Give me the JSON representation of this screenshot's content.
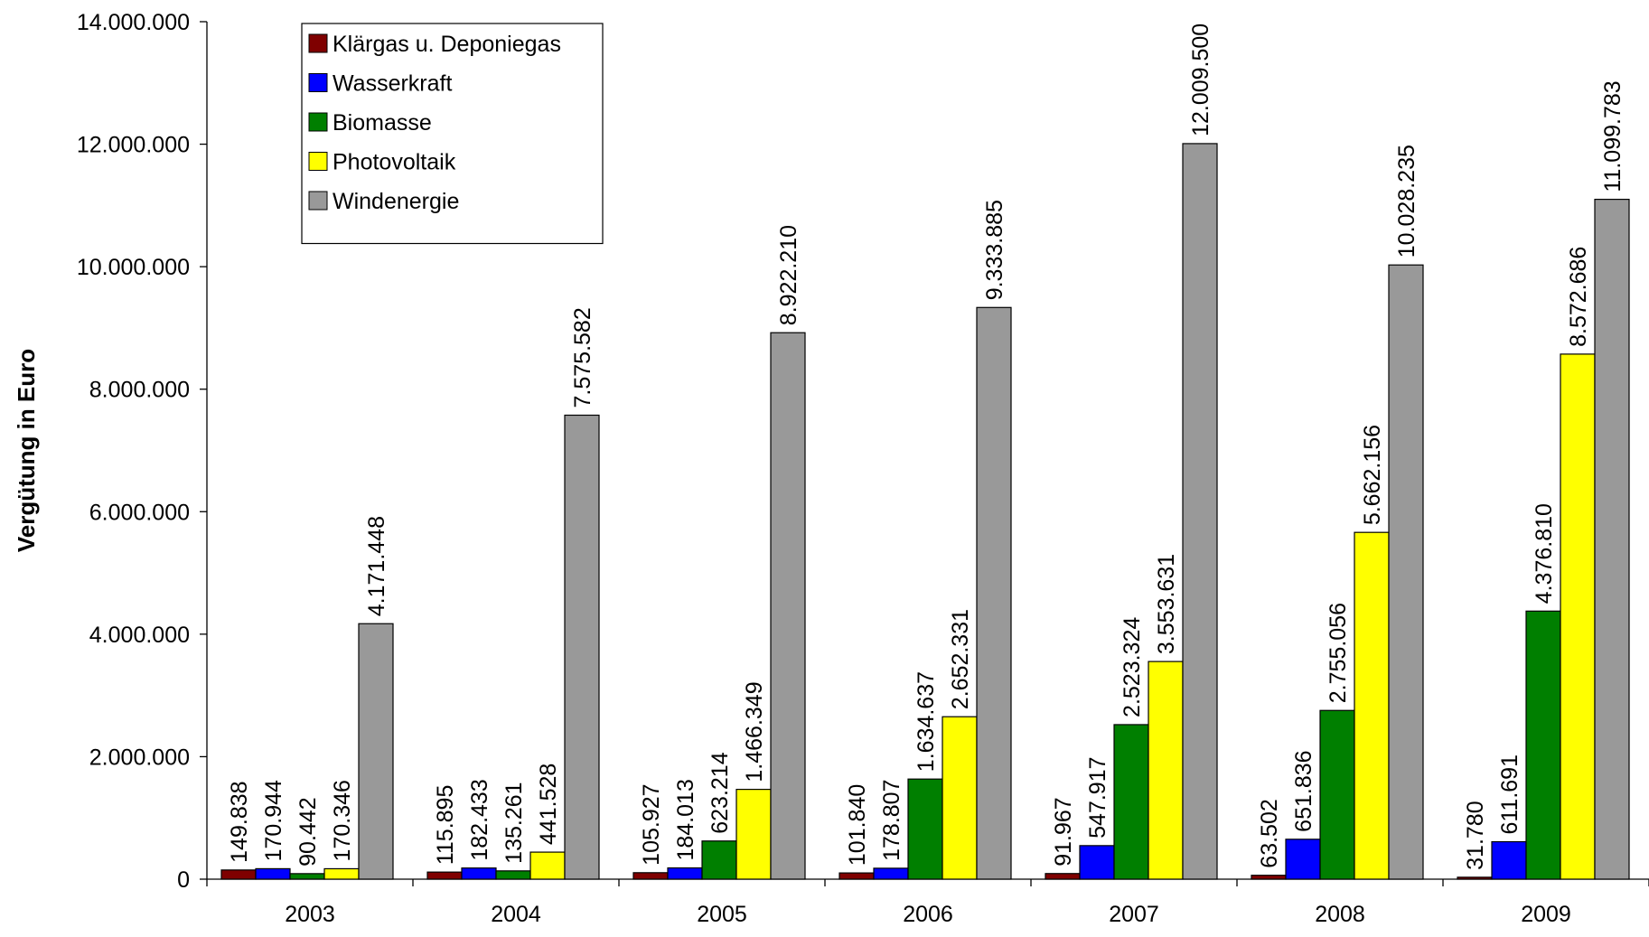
{
  "chart_data": {
    "type": "bar",
    "title": "",
    "xlabel": "",
    "ylabel": "Vergütung in Euro",
    "ylim": [
      0,
      14000000
    ],
    "yticks": [
      0,
      2000000,
      4000000,
      6000000,
      8000000,
      10000000,
      12000000,
      14000000
    ],
    "ytick_labels": [
      "0",
      "2.000.000",
      "4.000.000",
      "6.000.000",
      "8.000.000",
      "10.000.000",
      "12.000.000",
      "14.000.000"
    ],
    "categories": [
      "2003",
      "2004",
      "2005",
      "2006",
      "2007",
      "2008",
      "2009"
    ],
    "grid": false,
    "legend_position": "top-left",
    "series": [
      {
        "name": "Klärgas u. Deponiegas",
        "color": "#7f0000",
        "values": [
          149838,
          115895,
          105927,
          101840,
          91967,
          63502,
          31780
        ],
        "labels": [
          "149.838",
          "115.895",
          "105.927",
          "101.840",
          "91.967",
          "63.502",
          "31.780"
        ]
      },
      {
        "name": "Wasserkraft",
        "color": "#0000ff",
        "values": [
          170944,
          182433,
          184013,
          178807,
          547917,
          651836,
          611691
        ],
        "labels": [
          "170.944",
          "182.433",
          "184.013",
          "178.807",
          "547.917",
          "651.836",
          "611.691"
        ]
      },
      {
        "name": "Biomasse",
        "color": "#007f00",
        "values": [
          90442,
          135261,
          623214,
          1634637,
          2523324,
          2755056,
          4376810
        ],
        "labels": [
          "90.442",
          "135.261",
          "623.214",
          "1.634.637",
          "2.523.324",
          "2.755.056",
          "4.376.810"
        ]
      },
      {
        "name": "Photovoltaik",
        "color": "#ffff00",
        "values": [
          170346,
          441528,
          1466349,
          2652331,
          3553631,
          5662156,
          8572686
        ],
        "labels": [
          "170.346",
          "441.528",
          "1.466.349",
          "2.652.331",
          "3.553.631",
          "5.662.156",
          "8.572.686"
        ]
      },
      {
        "name": "Windenergie",
        "color": "#999999",
        "values": [
          4171448,
          7575582,
          8922210,
          9333885,
          12009500,
          10028235,
          11099783
        ],
        "labels": [
          "4.171.448",
          "7.575.582",
          "8.922.210",
          "9.333.885",
          "12.009.500",
          "10.028.235",
          "11.099.783"
        ]
      }
    ]
  }
}
